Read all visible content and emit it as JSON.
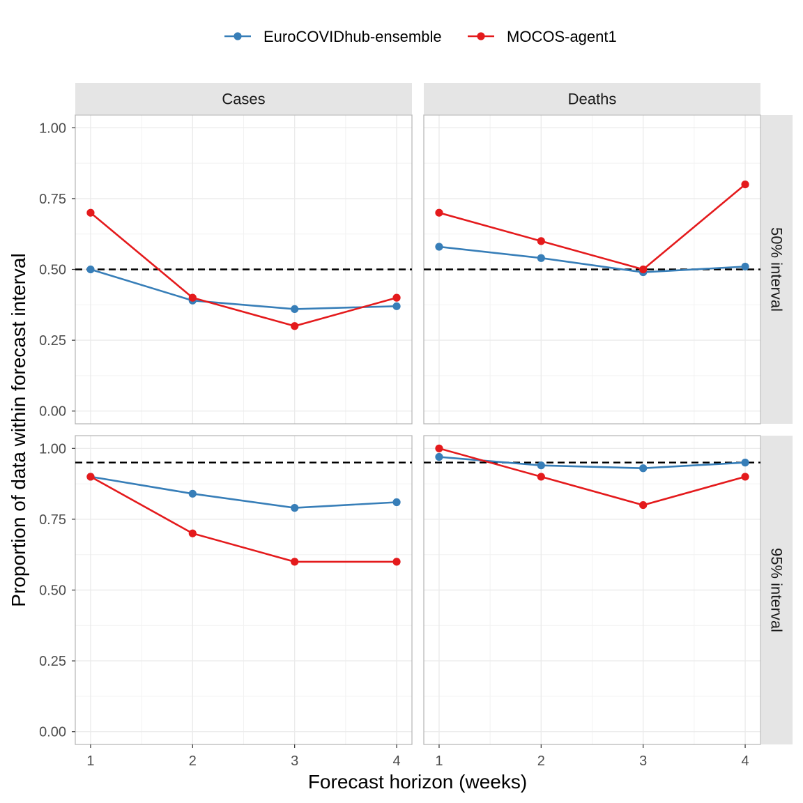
{
  "chart_data": {
    "type": "line",
    "xlabel": "Forecast horizon (weeks)",
    "ylabel": "Proportion of data within forecast interval",
    "x": [
      1,
      2,
      3,
      4
    ],
    "x_tick_labels": [
      "1",
      "2",
      "3",
      "4"
    ],
    "xlim": [
      0.85,
      4.15
    ],
    "ylim": [
      -0.045,
      1.045
    ],
    "y_ticks": [
      0,
      0.25,
      0.5,
      0.75,
      1
    ],
    "y_tick_labels": [
      "0.00",
      "0.25",
      "0.50",
      "0.75",
      "1.00"
    ],
    "grid": true,
    "legend_position": "top",
    "columns": [
      "Cases",
      "Deaths"
    ],
    "rows": [
      "50% interval",
      "95% interval"
    ],
    "series_names": [
      "EuroCOVIDhub-ensemble",
      "MOCOS-agent1"
    ],
    "colors": {
      "EuroCOVIDhub-ensemble": "#377eb8",
      "MOCOS-agent1": "#e41a1c",
      "reference_line": "#000000",
      "strip_background": "#e5e5e5",
      "grid": "#ebebeb",
      "panel_border": "#b3b3b3"
    },
    "panels": [
      {
        "column": "Cases",
        "row": "50% interval",
        "reference": 0.5,
        "series": [
          {
            "name": "EuroCOVIDhub-ensemble",
            "values": [
              0.5,
              0.39,
              0.36,
              0.37
            ]
          },
          {
            "name": "MOCOS-agent1",
            "values": [
              0.7,
              0.4,
              0.3,
              0.4
            ]
          }
        ]
      },
      {
        "column": "Deaths",
        "row": "50% interval",
        "reference": 0.5,
        "series": [
          {
            "name": "EuroCOVIDhub-ensemble",
            "values": [
              0.58,
              0.54,
              0.49,
              0.51
            ]
          },
          {
            "name": "MOCOS-agent1",
            "values": [
              0.7,
              0.6,
              0.5,
              0.8
            ]
          }
        ]
      },
      {
        "column": "Cases",
        "row": "95% interval",
        "reference": 0.95,
        "series": [
          {
            "name": "EuroCOVIDhub-ensemble",
            "values": [
              0.9,
              0.84,
              0.79,
              0.81
            ]
          },
          {
            "name": "MOCOS-agent1",
            "values": [
              0.9,
              0.7,
              0.6,
              0.6
            ]
          }
        ]
      },
      {
        "column": "Deaths",
        "row": "95% interval",
        "reference": 0.95,
        "series": [
          {
            "name": "EuroCOVIDhub-ensemble",
            "values": [
              0.97,
              0.94,
              0.93,
              0.95
            ]
          },
          {
            "name": "MOCOS-agent1",
            "values": [
              1.0,
              0.9,
              0.8,
              0.9
            ]
          }
        ]
      }
    ]
  }
}
